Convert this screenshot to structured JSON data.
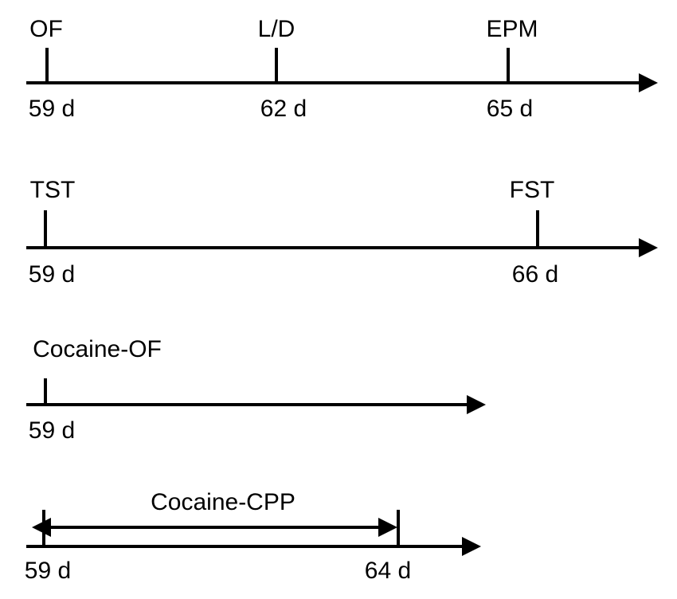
{
  "timelines": [
    {
      "events": [
        {
          "label": "OF",
          "day": "59 d"
        },
        {
          "label": "L/D",
          "day": "62 d"
        },
        {
          "label": "EPM",
          "day": "65 d"
        }
      ]
    },
    {
      "events": [
        {
          "label": "TST",
          "day": "59 d"
        },
        {
          "label": "FST",
          "day": "66 d"
        }
      ]
    },
    {
      "events": [
        {
          "label": "Cocaine-OF",
          "day": "59 d"
        }
      ]
    },
    {
      "span": {
        "label": "Cocaine-CPP"
      },
      "events": [
        {
          "day": "59 d"
        },
        {
          "day": "64 d"
        }
      ]
    }
  ]
}
